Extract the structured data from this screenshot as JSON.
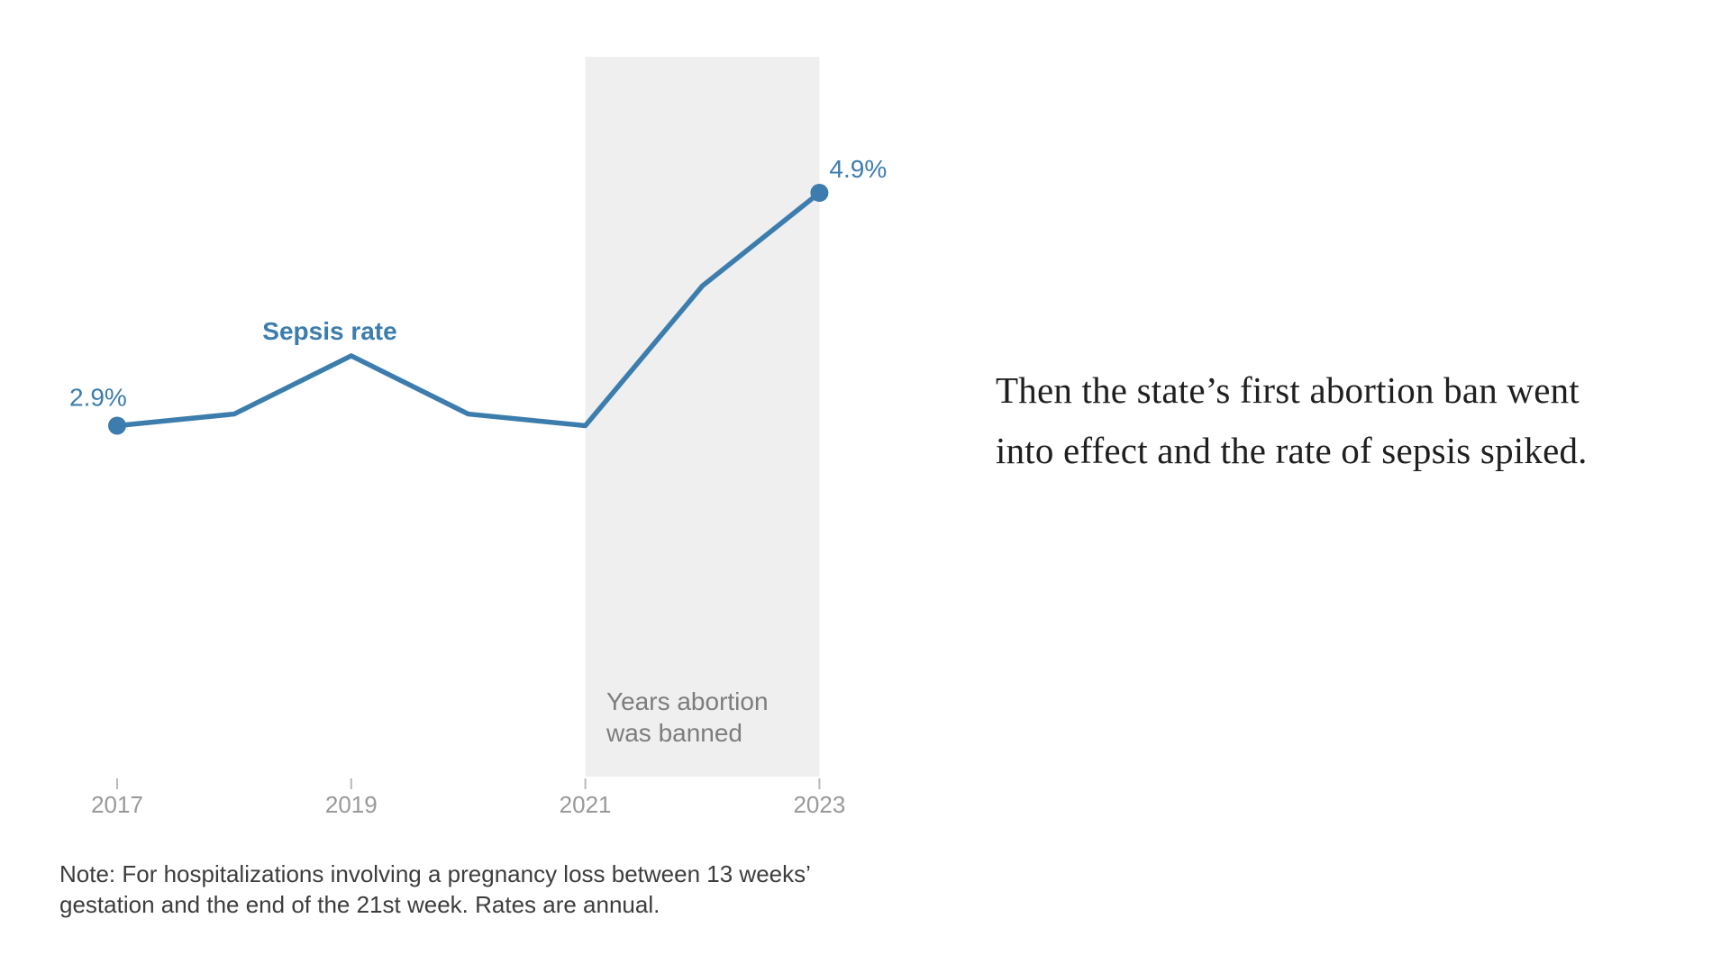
{
  "chart_data": {
    "type": "line",
    "series_label": "Sepsis rate",
    "x": [
      2017,
      2018,
      2019,
      2020,
      2021,
      2022,
      2023
    ],
    "values": [
      2.9,
      3.0,
      3.5,
      3.0,
      2.9,
      4.1,
      4.9
    ],
    "unit": "%",
    "x_ticks": [
      "2017",
      "2019",
      "2021",
      "2023"
    ],
    "point_labels": {
      "first": "2.9%",
      "last": "4.9%"
    },
    "band": {
      "from": 2021,
      "to": 2023,
      "label_lines": [
        "Years abortion",
        "was banned"
      ]
    },
    "axis": {
      "x_range": [
        2017,
        2023
      ],
      "y_axis_shown": false,
      "gridlines": false
    },
    "legend": "inline label above line, no legend box",
    "colors": {
      "line": "#3c7dad",
      "band": "#efefef",
      "tick": "#b9b9b9",
      "tick_label": "#999999",
      "band_label": "#7d7d7d",
      "point_label": "#3c7dad"
    }
  },
  "annotation": {
    "lines": [
      "Then the state’s first abortion ban went",
      "into effect and the rate of sepsis spiked."
    ]
  },
  "note": {
    "lines": [
      "Note: For hospitalizations involving a pregnancy loss between 13 weeks’",
      "gestation and the end of the 21st week. Rates are annual."
    ]
  }
}
